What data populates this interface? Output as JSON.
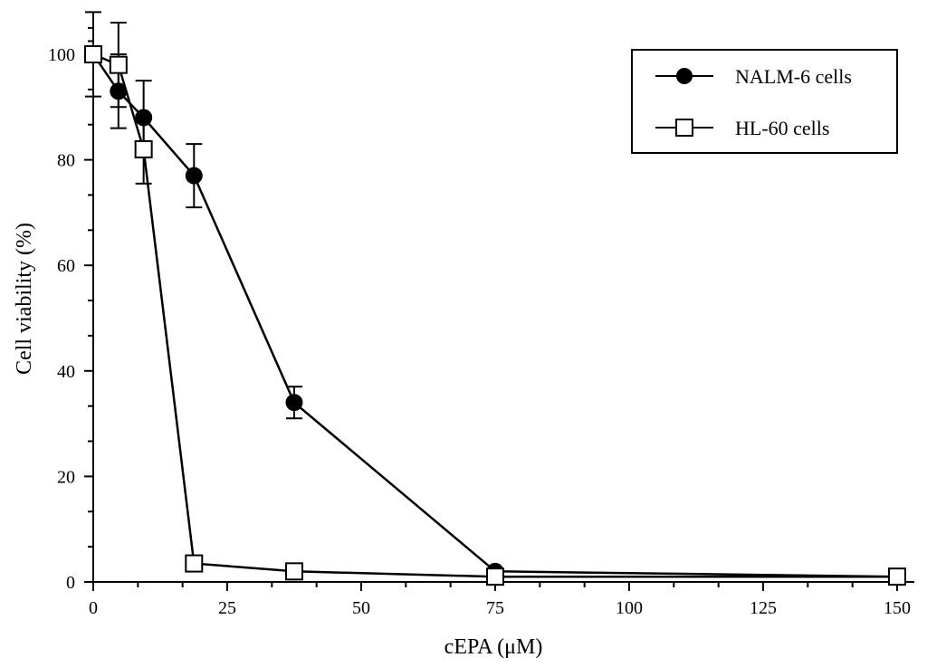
{
  "chart_data": {
    "type": "line",
    "title": "",
    "xlabel": "cEPA (μM)",
    "ylabel": "Cell viability (%)",
    "xlim": [
      0,
      150
    ],
    "ylim": [
      0,
      105
    ],
    "x_ticks": [
      0,
      25,
      50,
      75,
      100,
      125,
      150
    ],
    "y_ticks": [
      0,
      20,
      40,
      60,
      80,
      100
    ],
    "grid": false,
    "legend_position": "top-right",
    "series": [
      {
        "name": "NALM-6 cells",
        "marker": "filled-circle",
        "color": "#000000",
        "x": [
          0,
          4.7,
          9.4,
          18.8,
          37.5,
          75,
          150
        ],
        "y": [
          100,
          93,
          88,
          77,
          34,
          2,
          1
        ],
        "error": [
          8,
          7,
          7,
          6,
          3,
          0,
          0
        ]
      },
      {
        "name": "HL-60 cells",
        "marker": "open-square",
        "color": "#000000",
        "x": [
          0,
          4.7,
          9.4,
          18.8,
          37.5,
          75,
          150
        ],
        "y": [
          100,
          98,
          82,
          3.5,
          2,
          1,
          1
        ],
        "error": [
          0,
          8,
          6.5,
          0,
          0,
          0,
          0
        ]
      }
    ]
  }
}
